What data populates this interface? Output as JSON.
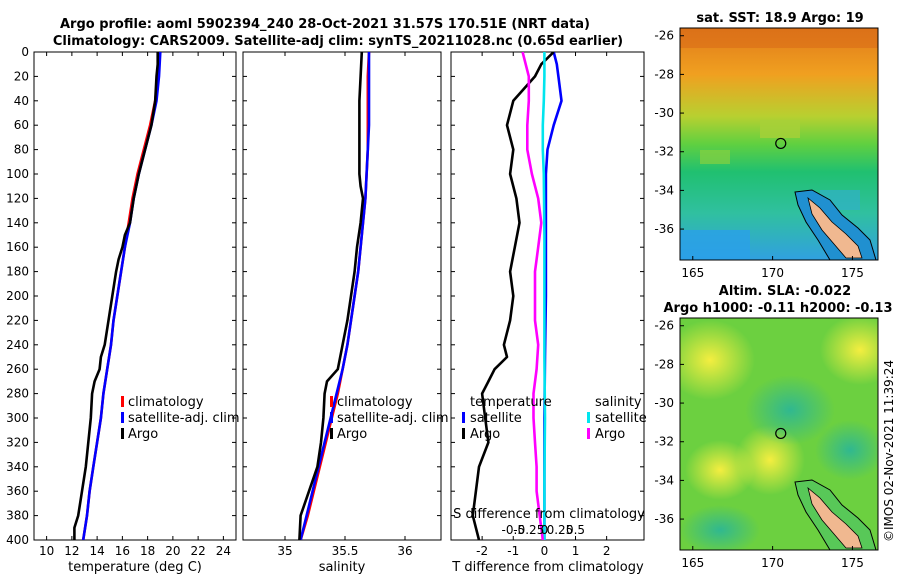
{
  "figure": {
    "title_line1": "Argo profile: aoml 5902394_240 28-Oct-2021 31.57S 170.51E (NRT data)",
    "title_line2": "Climatology: CARS2009. Satellite-adj clim: synTS_20211028.nc (0.65d earlier)",
    "watermark": "©IMOS 02-Nov-2021 11:39:24"
  },
  "chart_data": [
    {
      "type": "line",
      "id": "temperature",
      "xlabel": "temperature (deg C)",
      "ylabel": "",
      "xlim": [
        9,
        25
      ],
      "ylim": [
        0,
        400
      ],
      "y_reversed": true,
      "xticks": [
        10,
        12,
        14,
        16,
        18,
        20,
        22,
        24
      ],
      "yticks": [
        0,
        20,
        40,
        60,
        80,
        100,
        120,
        140,
        160,
        180,
        200,
        220,
        240,
        260,
        280,
        300,
        320,
        340,
        360,
        380,
        400
      ],
      "colors": {
        "climatology": "#ff0000",
        "satellite-adj. clim": "#0000ff",
        "Argo": "#000000"
      },
      "legend": [
        "climatology",
        "satellite-adj. clim",
        "Argo"
      ],
      "series": [
        {
          "name": "climatology",
          "depth": [
            0,
            20,
            40,
            60,
            80,
            100,
            120,
            140,
            160,
            180,
            200,
            220,
            240,
            260,
            280,
            300,
            320,
            340,
            360,
            380,
            400
          ],
          "values": [
            18.9,
            18.8,
            18.6,
            18.2,
            17.7,
            17.2,
            16.8,
            16.5,
            16.2,
            15.9,
            15.6,
            15.3,
            15.1,
            14.8,
            14.5,
            14.3,
            14.0,
            13.7,
            13.4,
            13.2,
            12.9
          ]
        },
        {
          "name": "satellite-adj. clim",
          "depth": [
            0,
            20,
            40,
            60,
            80,
            100,
            120,
            140,
            160,
            180,
            200,
            220,
            240,
            260,
            280,
            300,
            320,
            340,
            360,
            380,
            400
          ],
          "values": [
            19.0,
            18.9,
            18.7,
            18.3,
            17.8,
            17.3,
            16.9,
            16.6,
            16.2,
            15.9,
            15.6,
            15.3,
            15.1,
            14.8,
            14.5,
            14.3,
            14.0,
            13.7,
            13.4,
            13.2,
            12.9
          ]
        },
        {
          "name": "Argo",
          "depth": [
            0,
            10,
            20,
            40,
            60,
            80,
            100,
            120,
            140,
            150,
            160,
            170,
            180,
            200,
            220,
            240,
            250,
            260,
            270,
            280,
            300,
            320,
            340,
            360,
            380,
            390,
            400
          ],
          "values": [
            18.8,
            18.8,
            18.7,
            18.6,
            18.3,
            17.8,
            17.3,
            16.9,
            16.6,
            16.2,
            16.0,
            15.7,
            15.5,
            15.2,
            14.9,
            14.6,
            14.3,
            14.2,
            13.8,
            13.6,
            13.5,
            13.3,
            13.1,
            12.8,
            12.5,
            12.2,
            12.2
          ]
        }
      ]
    },
    {
      "type": "line",
      "id": "salinity",
      "xlabel": "salinity",
      "xlim": [
        34.65,
        36.3
      ],
      "ylim": [
        0,
        400
      ],
      "y_reversed": true,
      "xticks": [
        35,
        35.5,
        36
      ],
      "colors": {
        "climatology": "#ff0000",
        "satellite-adj. clim": "#0000ff",
        "Argo": "#000000"
      },
      "legend": [
        "climatology",
        "satellite-adj. clim",
        "Argo"
      ],
      "series": [
        {
          "name": "climatology",
          "depth": [
            0,
            20,
            40,
            60,
            80,
            100,
            120,
            140,
            160,
            180,
            200,
            220,
            240,
            260,
            280,
            300,
            320,
            340,
            360,
            380,
            400
          ],
          "values": [
            35.7,
            35.69,
            35.69,
            35.69,
            35.69,
            35.68,
            35.67,
            35.65,
            35.63,
            35.61,
            35.58,
            35.55,
            35.52,
            35.48,
            35.44,
            35.39,
            35.34,
            35.29,
            35.24,
            35.19,
            35.13
          ]
        },
        {
          "name": "satellite-adj. clim",
          "depth": [
            0,
            20,
            40,
            60,
            80,
            100,
            120,
            140,
            160,
            180,
            200,
            220,
            240,
            260,
            280,
            300,
            320,
            340,
            360,
            380,
            400
          ],
          "values": [
            35.7,
            35.7,
            35.7,
            35.7,
            35.69,
            35.68,
            35.67,
            35.65,
            35.63,
            35.61,
            35.58,
            35.55,
            35.52,
            35.48,
            35.43,
            35.38,
            35.33,
            35.28,
            35.23,
            35.18,
            35.13
          ]
        },
        {
          "name": "Argo",
          "depth": [
            0,
            20,
            40,
            60,
            80,
            100,
            110,
            120,
            140,
            160,
            180,
            200,
            220,
            240,
            260,
            270,
            280,
            300,
            320,
            340,
            360,
            380,
            400
          ],
          "values": [
            35.64,
            35.63,
            35.62,
            35.62,
            35.62,
            35.62,
            35.63,
            35.65,
            35.63,
            35.6,
            35.58,
            35.55,
            35.52,
            35.48,
            35.44,
            35.35,
            35.33,
            35.32,
            35.3,
            35.27,
            35.2,
            35.13,
            35.12
          ]
        }
      ]
    },
    {
      "type": "line",
      "id": "difference",
      "xlabel": "T difference from climatology",
      "xlabel_top": "S difference from climatology",
      "xlim": [
        -3,
        3.2
      ],
      "ylim": [
        0,
        400
      ],
      "y_reversed": true,
      "xticks": [
        -2,
        -1,
        0,
        1,
        2
      ],
      "top_ticks": [
        "-0.5",
        "-0.25",
        "0",
        "0.25",
        "0.5"
      ],
      "top_tick_positions": [
        -1.0,
        -0.5,
        0,
        0.5,
        1.0
      ],
      "colors": {
        "temperature satellite": "#0000ff",
        "temperature Argo": "#000000",
        "salinity satellite": "#00e5ee",
        "salinity Argo": "#ff00ff"
      },
      "legend_groups": [
        {
          "title": "temperature",
          "items": [
            "satellite",
            "Argo"
          ]
        },
        {
          "title": "salinity",
          "items": [
            "satellite",
            "Argo"
          ]
        }
      ],
      "series": [
        {
          "name": "temperature satellite",
          "depth": [
            0,
            10,
            20,
            40,
            60,
            80,
            100,
            150,
            200,
            250,
            300,
            350,
            400
          ],
          "values": [
            0.3,
            0.4,
            0.45,
            0.55,
            0.3,
            0.1,
            0.05,
            0.05,
            0.05,
            0.02,
            0.0,
            0.0,
            0.0
          ]
        },
        {
          "name": "temperature Argo",
          "depth": [
            0,
            10,
            20,
            40,
            60,
            80,
            100,
            120,
            140,
            160,
            180,
            200,
            220,
            240,
            250,
            260,
            270,
            280,
            300,
            320,
            340,
            360,
            380,
            390,
            400
          ],
          "values": [
            0.3,
            -0.1,
            -0.3,
            -1.0,
            -1.2,
            -1.0,
            -1.1,
            -0.9,
            -0.8,
            -0.95,
            -1.1,
            -1.0,
            -1.1,
            -1.3,
            -1.2,
            -1.6,
            -1.8,
            -2.0,
            -1.9,
            -1.8,
            -2.1,
            -2.2,
            -2.3,
            -2.2,
            -2.1
          ]
        },
        {
          "name": "salinity satellite",
          "depth": [
            0,
            20,
            40,
            60,
            80,
            100,
            150,
            200,
            250,
            300,
            350,
            400
          ],
          "values": [
            0.0,
            0.0,
            -0.02,
            -0.05,
            -0.05,
            -0.02,
            0.0,
            0.0,
            0.0,
            0.02,
            0.0,
            0.0
          ]
        },
        {
          "name": "salinity Argo",
          "depth": [
            0,
            20,
            40,
            60,
            80,
            100,
            120,
            140,
            160,
            180,
            200,
            220,
            240,
            260,
            280,
            300,
            320,
            340,
            360,
            380,
            400
          ],
          "values": [
            -0.7,
            -0.5,
            -0.5,
            -0.55,
            -0.55,
            -0.4,
            -0.2,
            -0.1,
            -0.2,
            -0.3,
            -0.3,
            -0.3,
            -0.2,
            -0.25,
            -0.35,
            -0.35,
            -0.3,
            -0.25,
            -0.25,
            -0.15,
            -0.05
          ]
        }
      ]
    },
    {
      "type": "heatmap",
      "id": "sst_map",
      "title": "sat. SST: 18.9  Argo: 19",
      "xlim": [
        164.2,
        176.6
      ],
      "ylim": [
        -37.6,
        -25.6
      ],
      "xticks": [
        165,
        170,
        175
      ],
      "yticks": [
        -26,
        -28,
        -30,
        -32,
        -34,
        -36
      ],
      "marker": {
        "lon": 170.51,
        "lat": -31.57
      }
    },
    {
      "type": "heatmap",
      "id": "sla_map",
      "title": "Altim. SLA: -0.022",
      "subtitle": "Argo h1000: -0.11 h2000: -0.13",
      "xlim": [
        164.2,
        176.6
      ],
      "ylim": [
        -37.6,
        -25.6
      ],
      "xticks": [
        165,
        170,
        175
      ],
      "yticks": [
        -26,
        -28,
        -30,
        -32,
        -34,
        -36
      ],
      "marker": {
        "lon": 170.51,
        "lat": -31.57
      }
    }
  ]
}
